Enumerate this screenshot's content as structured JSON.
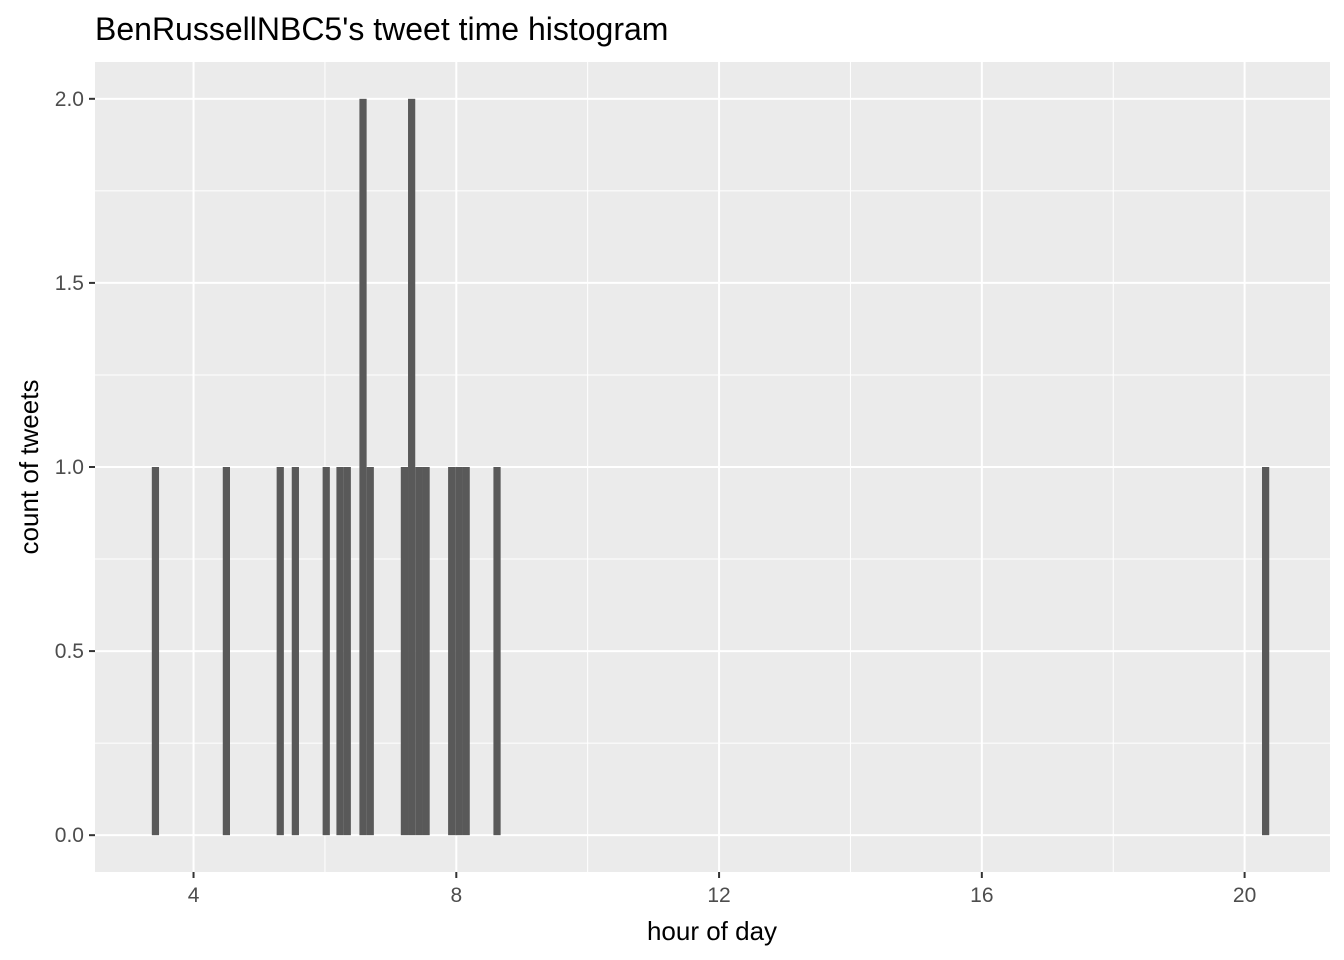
{
  "chart_data": {
    "type": "bar",
    "title": "BenRussellNBC5's tweet time histogram",
    "xlabel": "hour of day",
    "ylabel": "count of tweets",
    "xlim": [
      2.5,
      21.3
    ],
    "ylim": [
      -0.1,
      2.1
    ],
    "x_ticks": [
      4,
      8,
      12,
      16,
      20
    ],
    "x_tick_labels": [
      "4",
      "8",
      "12",
      "16",
      "20"
    ],
    "y_ticks": [
      0,
      0.5,
      1,
      1.5,
      2
    ],
    "y_tick_labels": [
      "0.0",
      "0.5",
      "1.0",
      "1.5",
      "2.0"
    ],
    "x_minor_gridlines": [
      6,
      10,
      14,
      18
    ],
    "y_minor_gridlines": [
      0.25,
      0.75,
      1.25,
      1.75
    ],
    "bin_width": 0.11,
    "x": [
      3.42,
      4.5,
      5.32,
      5.55,
      6.02,
      6.23,
      6.34,
      6.58,
      6.69,
      7.21,
      7.32,
      7.43,
      7.54,
      7.93,
      8.04,
      8.15,
      8.62,
      20.32
    ],
    "values": [
      1,
      1,
      1,
      1,
      1,
      1,
      1,
      2,
      1,
      1,
      2,
      1,
      1,
      1,
      1,
      1,
      1,
      1
    ],
    "grid": true,
    "colors": {
      "panel_background": "#ebebeb",
      "gridline": "#ffffff",
      "bar": "#595959",
      "tick_text": "#4d4d4d",
      "tick_mark": "#333333"
    }
  }
}
